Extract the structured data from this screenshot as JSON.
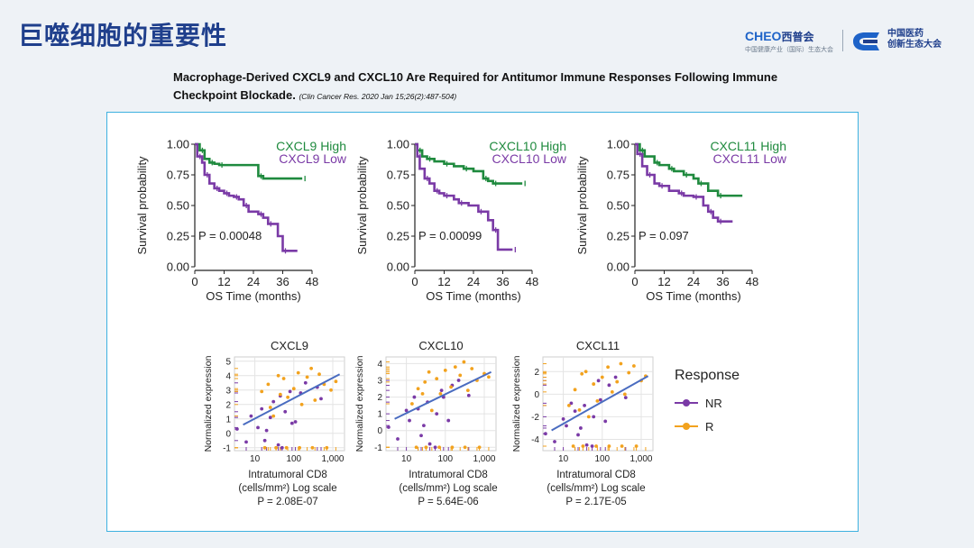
{
  "slide": {
    "title": "巨噬细胞的重要性",
    "logo_left_brand": "CHEO",
    "logo_left_cn": "西普会",
    "logo_left_sub": "中国健康产业（国际）生态大会",
    "logo_right_line1": "中国医药",
    "logo_right_line2": "创新生态大会",
    "paper_title": "Macrophage-Derived CXCL9 and CXCL10 Are Required for Antitumor Immune Responses Following Immune Checkpoint Blockade.",
    "paper_citation": "(Clin Cancer Res. 2020 Jan 15;26(2):487-504)"
  },
  "colors": {
    "title": "#1f3f8c",
    "high": "#1f8a3e",
    "low": "#7a3aa6",
    "nr": "#7a3aa6",
    "r": "#f2a21e",
    "fit": "#4a6cc0",
    "box_border": "#3db1e0"
  },
  "legend": {
    "title": "Response",
    "items": [
      {
        "label": "NR",
        "color": "#7a3aa6"
      },
      {
        "label": "R",
        "color": "#f2a21e"
      }
    ]
  },
  "chart_data": [
    {
      "type": "line",
      "ylabel": "Survival probability",
      "xlabel": "OS Time (months)",
      "xticks": [
        "0",
        "12",
        "24",
        "36",
        "48"
      ],
      "yticks": [
        "0.00",
        "0.25",
        "0.50",
        "0.75",
        "1.00"
      ],
      "xlim": [
        0,
        48
      ],
      "ylim": [
        0,
        1
      ],
      "pvalue": "P = 0.00048",
      "series": [
        {
          "name": "CXCL9 High",
          "x": [
            0,
            2,
            4,
            6,
            8,
            10,
            24,
            26,
            28,
            44
          ],
          "y": [
            1.0,
            0.95,
            0.88,
            0.85,
            0.84,
            0.83,
            0.83,
            0.74,
            0.72,
            0.72
          ]
        },
        {
          "name": "CXCL9 Low",
          "x": [
            0,
            1,
            3,
            4,
            6,
            8,
            10,
            12,
            14,
            16,
            18,
            20,
            22,
            26,
            28,
            30,
            34,
            36,
            42
          ],
          "y": [
            1.0,
            0.9,
            0.85,
            0.75,
            0.68,
            0.64,
            0.62,
            0.6,
            0.58,
            0.57,
            0.55,
            0.5,
            0.45,
            0.43,
            0.4,
            0.35,
            0.25,
            0.13,
            0.13
          ]
        }
      ]
    },
    {
      "type": "line",
      "ylabel": "Survival probability",
      "xlabel": "OS Time (months)",
      "xticks": [
        "0",
        "12",
        "24",
        "36",
        "48"
      ],
      "yticks": [
        "0.00",
        "0.25",
        "0.50",
        "0.75",
        "1.00"
      ],
      "xlim": [
        0,
        48
      ],
      "ylim": [
        0,
        1
      ],
      "pvalue": "P = 0.00099",
      "series": [
        {
          "name": "CXCL10 High",
          "x": [
            0,
            1,
            3,
            5,
            8,
            12,
            16,
            20,
            24,
            28,
            30,
            32,
            38,
            44
          ],
          "y": [
            1.0,
            0.95,
            0.9,
            0.88,
            0.86,
            0.84,
            0.82,
            0.8,
            0.78,
            0.72,
            0.7,
            0.68,
            0.68,
            0.68
          ]
        },
        {
          "name": "CXCL10 Low",
          "x": [
            0,
            1,
            2,
            4,
            6,
            8,
            10,
            12,
            16,
            18,
            22,
            26,
            30,
            32,
            34,
            40
          ],
          "y": [
            1.0,
            0.9,
            0.8,
            0.72,
            0.68,
            0.62,
            0.6,
            0.58,
            0.55,
            0.52,
            0.5,
            0.45,
            0.38,
            0.3,
            0.14,
            0.14
          ]
        }
      ]
    },
    {
      "type": "line",
      "ylabel": "Survival probability",
      "xlabel": "OS Time (months)",
      "xticks": [
        "0",
        "12",
        "24",
        "36",
        "48"
      ],
      "yticks": [
        "0.00",
        "0.25",
        "0.50",
        "0.75",
        "1.00"
      ],
      "xlim": [
        0,
        48
      ],
      "ylim": [
        0,
        1
      ],
      "pvalue": "P = 0.097",
      "series": [
        {
          "name": "CXCL11 High",
          "x": [
            0,
            2,
            4,
            8,
            10,
            14,
            16,
            20,
            24,
            26,
            30,
            34,
            44
          ],
          "y": [
            1.0,
            0.95,
            0.9,
            0.85,
            0.83,
            0.8,
            0.78,
            0.75,
            0.72,
            0.68,
            0.62,
            0.58,
            0.58
          ]
        },
        {
          "name": "CXCL11 Low",
          "x": [
            0,
            1,
            3,
            5,
            8,
            10,
            14,
            18,
            20,
            24,
            28,
            30,
            32,
            34,
            40
          ],
          "y": [
            1.0,
            0.92,
            0.82,
            0.75,
            0.68,
            0.66,
            0.62,
            0.6,
            0.58,
            0.57,
            0.5,
            0.45,
            0.4,
            0.37,
            0.37
          ]
        }
      ]
    },
    {
      "type": "scatter",
      "title": "CXCL9",
      "ylabel": "Normalized expression",
      "xlabel_lines": [
        "Intratumoral CD8",
        "(cells/mm²) Log scale"
      ],
      "pvalue": "P = 2.08E-07",
      "xscale": "log",
      "xticks": [
        10,
        100,
        1000
      ],
      "xtick_labels": [
        "10",
        "100",
        "1,000"
      ],
      "xlim": [
        3,
        2000
      ],
      "yticks": [
        -1,
        0,
        1,
        2,
        3,
        4,
        5
      ],
      "ylim": [
        -1.2,
        5.3
      ],
      "fit": {
        "x": [
          5,
          1500
        ],
        "y": [
          0.6,
          4.1
        ]
      },
      "series": [
        {
          "name": "NR",
          "x": [
            3.5,
            6,
            12,
            20,
            25,
            40,
            60,
            90,
            150,
            400,
            30,
            50,
            80,
            110,
            200,
            500,
            8,
            15,
            18,
            45
          ],
          "y": [
            0.3,
            -0.6,
            0.4,
            0.2,
            1.1,
            -0.8,
            1.5,
            0.7,
            2.8,
            3.2,
            2.2,
            -1,
            2.9,
            0.8,
            3.5,
            2.4,
            1.2,
            1.7,
            -0.5,
            2.6
          ]
        },
        {
          "name": "R",
          "x": [
            15,
            22,
            30,
            45,
            55,
            70,
            100,
            130,
            160,
            220,
            280,
            350,
            450,
            600,
            900,
            1200,
            18,
            35,
            65,
            140,
            300,
            700,
            40,
            25
          ],
          "y": [
            2.9,
            3.4,
            1.2,
            2.7,
            3.8,
            2.5,
            3.1,
            4.2,
            2.0,
            3.9,
            4.5,
            2.3,
            4.1,
            3.4,
            3.0,
            3.6,
            -1.0,
            -1.0,
            -1.0,
            -1.0,
            -1.0,
            -1.0,
            4.0,
            1.8
          ]
        }
      ]
    },
    {
      "type": "scatter",
      "title": "CXCL10",
      "ylabel": "Normalized expression",
      "xlabel_lines": [
        "Intratumoral CD8",
        "(cells/mm²) Log scale"
      ],
      "pvalue": "P = 5.64E-06",
      "xscale": "log",
      "xticks": [
        10,
        100,
        1000
      ],
      "xtick_labels": [
        "10",
        "100",
        "1,000"
      ],
      "xlim": [
        3,
        2000
      ],
      "yticks": [
        -1,
        0,
        1,
        2,
        3,
        4
      ],
      "ylim": [
        -1.2,
        4.4
      ],
      "fit": {
        "x": [
          5,
          1500
        ],
        "y": [
          0.7,
          3.5
        ]
      },
      "series": [
        {
          "name": "NR",
          "x": [
            3.5,
            6,
            12,
            20,
            28,
            40,
            60,
            90,
            150,
            400,
            35,
            55,
            80,
            120,
            220,
            10,
            16,
            24
          ],
          "y": [
            0.2,
            -0.5,
            0.6,
            1.3,
            0.3,
            -0.8,
            1.0,
            2.0,
            2.7,
            2.1,
            1.7,
            -1,
            2.4,
            0.6,
            3.0,
            1.2,
            2.0,
            -0.3
          ]
        },
        {
          "name": "R",
          "x": [
            14,
            20,
            30,
            45,
            60,
            75,
            100,
            140,
            180,
            240,
            300,
            380,
            480,
            650,
            1000,
            1300,
            18,
            32,
            70,
            150,
            320,
            750,
            38,
            26
          ],
          "y": [
            1.6,
            2.5,
            2.9,
            1.2,
            3.1,
            2.2,
            3.6,
            2.6,
            3.8,
            3.3,
            4.1,
            2.4,
            3.7,
            3.0,
            3.4,
            3.2,
            -1.0,
            -1.0,
            -1.0,
            -1.0,
            -1.0,
            -1.0,
            3.5,
            2.2
          ]
        }
      ]
    },
    {
      "type": "scatter",
      "title": "CXCL11",
      "ylabel": "Normalized expression",
      "xlabel_lines": [
        "Intratumoral CD8",
        "(cells/mm²) Log scale"
      ],
      "pvalue": "P = 2.17E-05",
      "xscale": "log",
      "xticks": [
        10,
        100,
        1000
      ],
      "xtick_labels": [
        "10",
        "100",
        "1,000"
      ],
      "xlim": [
        3,
        2000
      ],
      "yticks": [
        -4,
        -2,
        0,
        2
      ],
      "ylim": [
        -5,
        3.3
      ],
      "fit": {
        "x": [
          5,
          1500
        ],
        "y": [
          -3.2,
          1.6
        ]
      },
      "series": [
        {
          "name": "NR",
          "x": [
            3.5,
            6,
            12,
            20,
            28,
            40,
            60,
            90,
            150,
            400,
            35,
            55,
            80,
            120,
            220,
            10,
            16,
            24
          ],
          "y": [
            -3.5,
            -4.2,
            -2.8,
            -1.5,
            -3.0,
            -4.5,
            -2.0,
            -0.5,
            0.8,
            -0.3,
            -1.0,
            -4.6,
            1.2,
            -2.4,
            1.5,
            -2.2,
            -0.8,
            -3.6
          ]
        },
        {
          "name": "R",
          "x": [
            14,
            20,
            30,
            45,
            60,
            75,
            100,
            140,
            180,
            240,
            300,
            380,
            480,
            650,
            1000,
            1300,
            18,
            32,
            70,
            150,
            320,
            750,
            38,
            26
          ],
          "y": [
            -1.0,
            0.4,
            1.8,
            -2.0,
            0.9,
            -0.6,
            1.5,
            2.4,
            0.2,
            1.1,
            2.7,
            0.0,
            1.9,
            2.5,
            1.2,
            1.6,
            -4.6,
            -4.6,
            -4.6,
            -4.6,
            -4.6,
            -4.6,
            2.0,
            -1.4
          ]
        }
      ]
    }
  ]
}
